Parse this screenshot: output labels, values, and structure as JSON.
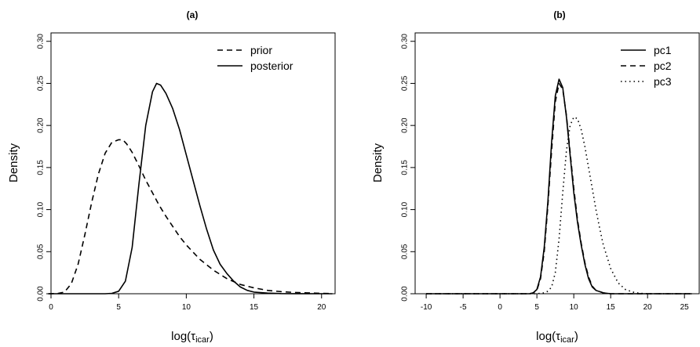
{
  "chart_data": [
    {
      "type": "line",
      "title": "(a)",
      "xlabel": "log(",
      "xlabel_symbol": "τ",
      "xlabel_subscript": "icar",
      "xlabel_close": ")",
      "ylabel": "Density",
      "xlim": [
        0,
        21
      ],
      "ylim": [
        0,
        0.31
      ],
      "xticks": [
        "0",
        "5",
        "10",
        "15",
        "20"
      ],
      "yticks": [
        "0.00",
        "0.05",
        "0.10",
        "0.15",
        "0.20",
        "0.25",
        "0.30"
      ],
      "legend": "top-right",
      "series": [
        {
          "name": "prior",
          "style": "dashed",
          "x": [
            -0.2,
            0.5,
            1,
            1.5,
            2,
            2.5,
            3,
            3.5,
            4,
            4.5,
            5,
            5.3,
            5.6,
            6,
            6.5,
            7,
            7.5,
            8,
            8.5,
            9,
            9.5,
            10,
            11,
            12,
            13,
            14,
            15,
            16,
            17,
            18,
            19,
            20,
            20.8
          ],
          "y": [
            0,
            0.0003,
            0.002,
            0.012,
            0.035,
            0.07,
            0.108,
            0.142,
            0.167,
            0.18,
            0.183,
            0.183,
            0.178,
            0.168,
            0.152,
            0.135,
            0.12,
            0.105,
            0.092,
            0.08,
            0.068,
            0.058,
            0.041,
            0.028,
            0.018,
            0.011,
            0.007,
            0.004,
            0.0025,
            0.0015,
            0.001,
            0.0005,
            0.0003
          ]
        },
        {
          "name": "posterior",
          "style": "solid",
          "x": [
            -0.2,
            2,
            4,
            4.5,
            5,
            5.5,
            6,
            6.5,
            7,
            7.5,
            7.8,
            8.1,
            8.5,
            9,
            9.5,
            10,
            10.5,
            11,
            11.5,
            12,
            12.5,
            13,
            13.5,
            14,
            14.5,
            15,
            16,
            17,
            18,
            20.8
          ],
          "y": [
            0,
            0,
            0,
            0.0005,
            0.003,
            0.015,
            0.055,
            0.13,
            0.2,
            0.24,
            0.25,
            0.248,
            0.238,
            0.22,
            0.195,
            0.165,
            0.135,
            0.105,
            0.077,
            0.052,
            0.035,
            0.024,
            0.015,
            0.008,
            0.004,
            0.002,
            0.0007,
            0.0002,
            0.0001,
            0
          ]
        }
      ]
    },
    {
      "type": "line",
      "title": "(b)",
      "xlabel": "log(",
      "xlabel_symbol": "τ",
      "xlabel_subscript": "icar",
      "xlabel_close": ")",
      "ylabel": "Density",
      "xlim": [
        -11.5,
        27
      ],
      "ylim": [
        0,
        0.31
      ],
      "xticks": [
        "-10",
        "-5",
        "0",
        "5",
        "10",
        "15",
        "20",
        "25"
      ],
      "yticks": [
        "0.00",
        "0.05",
        "0.10",
        "0.15",
        "0.20",
        "0.25",
        "0.30"
      ],
      "legend": "top-right",
      "series": [
        {
          "name": "pc1",
          "style": "solid",
          "x": [
            -10,
            0,
            4,
            4.5,
            5,
            5.5,
            6,
            6.5,
            7,
            7.5,
            8,
            8.5,
            9,
            9.5,
            10,
            10.5,
            11,
            11.5,
            12,
            12.5,
            13,
            14,
            15,
            26
          ],
          "y": [
            0,
            0,
            0,
            0.001,
            0.005,
            0.02,
            0.055,
            0.11,
            0.18,
            0.235,
            0.255,
            0.245,
            0.21,
            0.165,
            0.12,
            0.085,
            0.058,
            0.035,
            0.018,
            0.008,
            0.004,
            0.001,
            0,
            0
          ]
        },
        {
          "name": "pc2",
          "style": "dashed",
          "x": [
            -10,
            0,
            4,
            4.5,
            5,
            5.5,
            6,
            6.5,
            7,
            7.5,
            8,
            8.5,
            9,
            9.5,
            10,
            10.5,
            11,
            11.5,
            12,
            12.5,
            13,
            14,
            15,
            26
          ],
          "y": [
            0,
            0,
            0,
            0.001,
            0.004,
            0.018,
            0.05,
            0.105,
            0.17,
            0.228,
            0.25,
            0.243,
            0.212,
            0.168,
            0.125,
            0.088,
            0.06,
            0.037,
            0.02,
            0.009,
            0.004,
            0.001,
            0,
            0
          ]
        },
        {
          "name": "pc3",
          "style": "dotted",
          "x": [
            -10,
            0,
            5,
            6,
            6.5,
            7,
            7.5,
            8,
            8.5,
            9,
            9.5,
            10,
            10.5,
            11,
            11.5,
            12,
            12.5,
            13,
            13.5,
            14,
            15,
            16,
            17,
            18,
            19,
            20,
            26
          ],
          "y": [
            0,
            0,
            0,
            0.001,
            0.003,
            0.008,
            0.025,
            0.065,
            0.12,
            0.17,
            0.2,
            0.21,
            0.208,
            0.195,
            0.175,
            0.15,
            0.125,
            0.1,
            0.078,
            0.058,
            0.03,
            0.013,
            0.005,
            0.002,
            0.0005,
            0,
            0
          ]
        }
      ]
    }
  ]
}
